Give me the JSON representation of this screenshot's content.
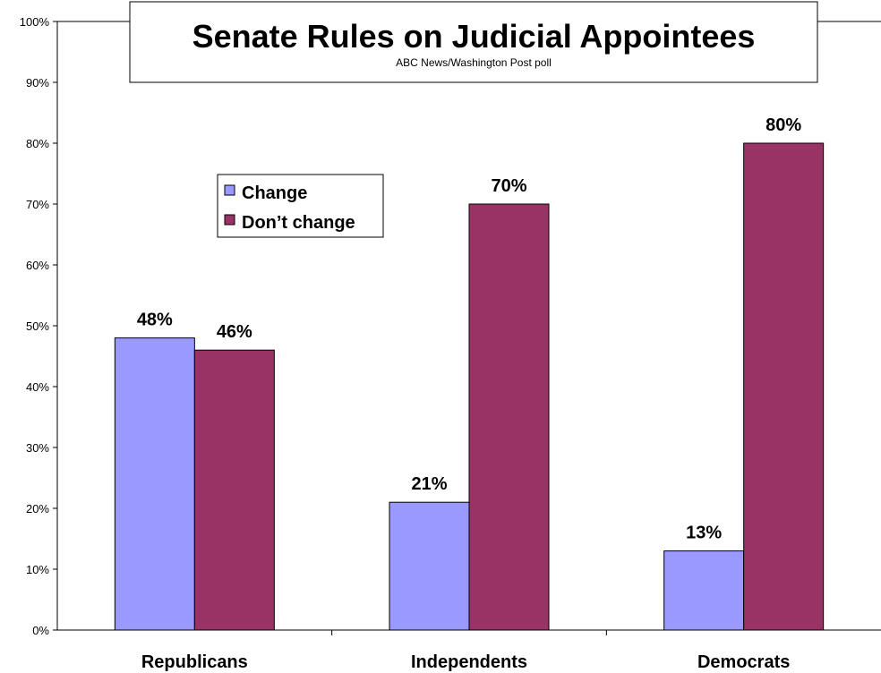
{
  "chart_data": {
    "type": "bar",
    "title": "Senate Rules on Judicial Appointees",
    "subtitle": "ABC News/Washington Post poll",
    "categories": [
      "Republicans",
      "Independents",
      "Democrats"
    ],
    "series": [
      {
        "name": "Change",
        "values": [
          48,
          21,
          13
        ],
        "labels": [
          "48%",
          "21%",
          "13%"
        ],
        "color": "#9999ff"
      },
      {
        "name": "Don’t change",
        "values": [
          46,
          70,
          80
        ],
        "labels": [
          "46%",
          "70%",
          "80%"
        ],
        "color": "#993366"
      }
    ],
    "ylim": [
      0,
      100
    ],
    "yticks": [
      "0%",
      "10%",
      "20%",
      "30%",
      "40%",
      "50%",
      "60%",
      "70%",
      "80%",
      "90%",
      "100%"
    ],
    "xlabel": "",
    "ylabel": "",
    "grid": false,
    "legend_position": "upper-left-inside"
  }
}
